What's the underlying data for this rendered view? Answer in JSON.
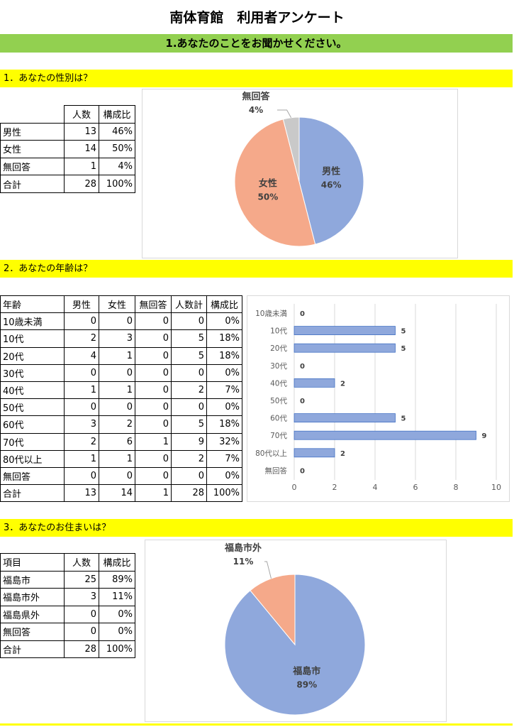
{
  "title": "南体育館　利用者アンケート",
  "banner": "1.あなたのことをお聞かせください。",
  "sections": [
    {
      "heading": "1．あなたの性別は？",
      "table": {
        "header": [
          "人数",
          "構成比"
        ],
        "rows": [
          [
            "男性",
            "13",
            "46%"
          ],
          [
            "女性",
            "14",
            "50%"
          ],
          [
            "無回答",
            "1",
            "4%"
          ],
          [
            "合計",
            "28",
            "100%"
          ]
        ]
      }
    },
    {
      "heading": "2．あなたの年齢は？",
      "table": {
        "header": [
          "年齢",
          "男性",
          "女性",
          "無回答",
          "人数計",
          "構成比"
        ],
        "rows": [
          [
            "10歳未満",
            "0",
            "0",
            "0",
            "0",
            "0%"
          ],
          [
            "10代",
            "2",
            "3",
            "0",
            "5",
            "18%"
          ],
          [
            "20代",
            "4",
            "1",
            "0",
            "5",
            "18%"
          ],
          [
            "30代",
            "0",
            "0",
            "0",
            "0",
            "0%"
          ],
          [
            "40代",
            "1",
            "1",
            "0",
            "2",
            "7%"
          ],
          [
            "50代",
            "0",
            "0",
            "0",
            "0",
            "0%"
          ],
          [
            "60代",
            "3",
            "2",
            "0",
            "5",
            "18%"
          ],
          [
            "70代",
            "2",
            "6",
            "1",
            "9",
            "32%"
          ],
          [
            "80代以上",
            "1",
            "1",
            "0",
            "2",
            "7%"
          ],
          [
            "無回答",
            "0",
            "0",
            "0",
            "0",
            "0%"
          ],
          [
            "合計",
            "13",
            "14",
            "1",
            "28",
            "100%"
          ]
        ]
      }
    },
    {
      "heading": "3．あなたのお住まいは？",
      "table": {
        "header": [
          "項目",
          "人数",
          "構成比"
        ],
        "rows": [
          [
            "福島市",
            "25",
            "89%"
          ],
          [
            "福島市外",
            "3",
            "11%"
          ],
          [
            "福島県外",
            "0",
            "0%"
          ],
          [
            "無回答",
            "0",
            "0%"
          ],
          [
            "合計",
            "28",
            "100%"
          ]
        ]
      }
    }
  ],
  "chart_data": [
    {
      "type": "pie",
      "categories": [
        "男性",
        "女性",
        "無回答"
      ],
      "values": [
        46,
        50,
        4
      ],
      "value_labels": [
        "46%",
        "50%",
        "4%"
      ],
      "colors": [
        "#8fa8dc",
        "#f5a98a",
        "#c9c9c9"
      ]
    },
    {
      "type": "bar",
      "horizontal": true,
      "categories": [
        "10歳未満",
        "10代",
        "20代",
        "30代",
        "40代",
        "50代",
        "60代",
        "70代",
        "80代以上",
        "無回答"
      ],
      "values": [
        0,
        5,
        5,
        0,
        2,
        0,
        5,
        9,
        2,
        0
      ],
      "color": "#8fa8dc",
      "xlim": [
        0,
        10
      ],
      "xticks": [
        0,
        2,
        4,
        6,
        8,
        10
      ],
      "grid": true
    },
    {
      "type": "pie",
      "categories": [
        "福島市",
        "福島市外"
      ],
      "values": [
        89,
        11
      ],
      "value_labels": [
        "89%",
        "11%"
      ],
      "colors": [
        "#8fa8dc",
        "#f5a98a"
      ]
    }
  ]
}
